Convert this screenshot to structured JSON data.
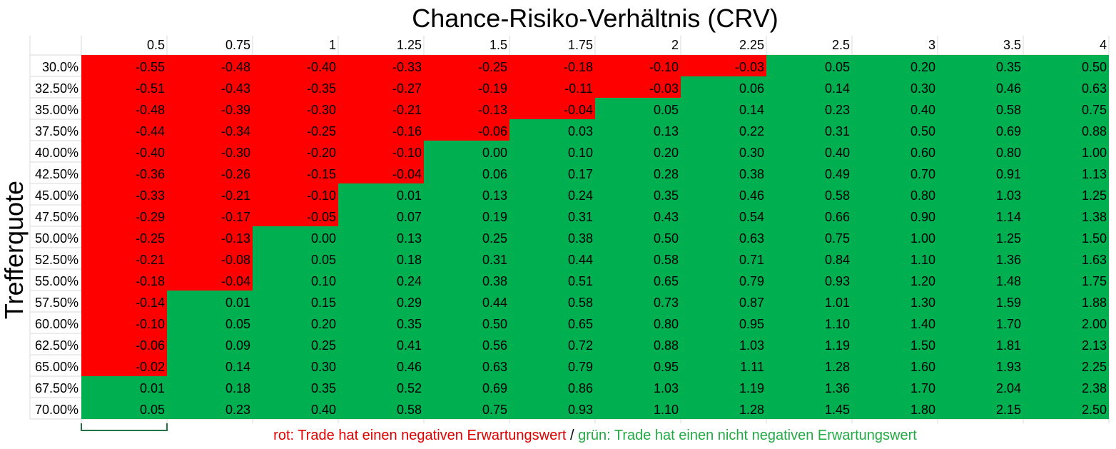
{
  "chart_data": {
    "type": "heatmap",
    "title": "Chance-Risiko-Verhältnis (CRV)",
    "ylabel": "Trefferquote",
    "x": [
      "0.5",
      "0.75",
      "1",
      "1.25",
      "1.5",
      "1.75",
      "2",
      "2.25",
      "2.5",
      "3",
      "3.5",
      "4"
    ],
    "y": [
      "30.0%",
      "32.50%",
      "35.00%",
      "37.50%",
      "40.00%",
      "42.50%",
      "45.00%",
      "47.50%",
      "50.00%",
      "52.50%",
      "55.00%",
      "57.50%",
      "60.00%",
      "62.50%",
      "65.00%",
      "67.50%",
      "70.00%"
    ],
    "values": [
      [
        "-0.55",
        "-0.48",
        "-0.40",
        "-0.33",
        "-0.25",
        "-0.18",
        "-0.10",
        "-0.03",
        "0.05",
        "0.20",
        "0.35",
        "0.50"
      ],
      [
        "-0.51",
        "-0.43",
        "-0.35",
        "-0.27",
        "-0.19",
        "-0.11",
        "-0.03",
        "0.06",
        "0.14",
        "0.30",
        "0.46",
        "0.63"
      ],
      [
        "-0.48",
        "-0.39",
        "-0.30",
        "-0.21",
        "-0.13",
        "-0.04",
        "0.05",
        "0.14",
        "0.23",
        "0.40",
        "0.58",
        "0.75"
      ],
      [
        "-0.44",
        "-0.34",
        "-0.25",
        "-0.16",
        "-0.06",
        "0.03",
        "0.13",
        "0.22",
        "0.31",
        "0.50",
        "0.69",
        "0.88"
      ],
      [
        "-0.40",
        "-0.30",
        "-0.20",
        "-0.10",
        "0.00",
        "0.10",
        "0.20",
        "0.30",
        "0.40",
        "0.60",
        "0.80",
        "1.00"
      ],
      [
        "-0.36",
        "-0.26",
        "-0.15",
        "-0.04",
        "0.06",
        "0.17",
        "0.28",
        "0.38",
        "0.49",
        "0.70",
        "0.91",
        "1.13"
      ],
      [
        "-0.33",
        "-0.21",
        "-0.10",
        "0.01",
        "0.13",
        "0.24",
        "0.35",
        "0.46",
        "0.58",
        "0.80",
        "1.03",
        "1.25"
      ],
      [
        "-0.29",
        "-0.17",
        "-0.05",
        "0.07",
        "0.19",
        "0.31",
        "0.43",
        "0.54",
        "0.66",
        "0.90",
        "1.14",
        "1.38"
      ],
      [
        "-0.25",
        "-0.13",
        "0.00",
        "0.13",
        "0.25",
        "0.38",
        "0.50",
        "0.63",
        "0.75",
        "1.00",
        "1.25",
        "1.50"
      ],
      [
        "-0.21",
        "-0.08",
        "0.05",
        "0.18",
        "0.31",
        "0.44",
        "0.58",
        "0.71",
        "0.84",
        "1.10",
        "1.36",
        "1.63"
      ],
      [
        "-0.18",
        "-0.04",
        "0.10",
        "0.24",
        "0.38",
        "0.51",
        "0.65",
        "0.79",
        "0.93",
        "1.20",
        "1.48",
        "1.75"
      ],
      [
        "-0.14",
        "0.01",
        "0.15",
        "0.29",
        "0.44",
        "0.58",
        "0.73",
        "0.87",
        "1.01",
        "1.30",
        "1.59",
        "1.88"
      ],
      [
        "-0.10",
        "0.05",
        "0.20",
        "0.35",
        "0.50",
        "0.65",
        "0.80",
        "0.95",
        "1.10",
        "1.40",
        "1.70",
        "2.00"
      ],
      [
        "-0.06",
        "0.09",
        "0.25",
        "0.41",
        "0.56",
        "0.72",
        "0.88",
        "1.03",
        "1.19",
        "1.50",
        "1.81",
        "2.13"
      ],
      [
        "-0.02",
        "0.14",
        "0.30",
        "0.46",
        "0.63",
        "0.79",
        "0.95",
        "1.11",
        "1.28",
        "1.60",
        "1.93",
        "2.25"
      ],
      [
        "0.01",
        "0.18",
        "0.35",
        "0.52",
        "0.69",
        "0.86",
        "1.03",
        "1.19",
        "1.36",
        "1.70",
        "2.04",
        "2.38"
      ],
      [
        "0.05",
        "0.23",
        "0.40",
        "0.58",
        "0.75",
        "0.93",
        "1.10",
        "1.28",
        "1.45",
        "1.80",
        "2.15",
        "2.50"
      ]
    ],
    "colors": {
      "negative": "#ff0000",
      "non_negative": "#00b050"
    },
    "grid": true,
    "legend": {
      "position": "bottom",
      "negative_text": "rot: Trade hat einen negativen Erwartungswert",
      "separator": " / ",
      "positive_text": "grün: Trade hat einen nicht negativen Erwartungswert",
      "negative_color": "#e00000",
      "positive_color": "#22aa44"
    }
  }
}
